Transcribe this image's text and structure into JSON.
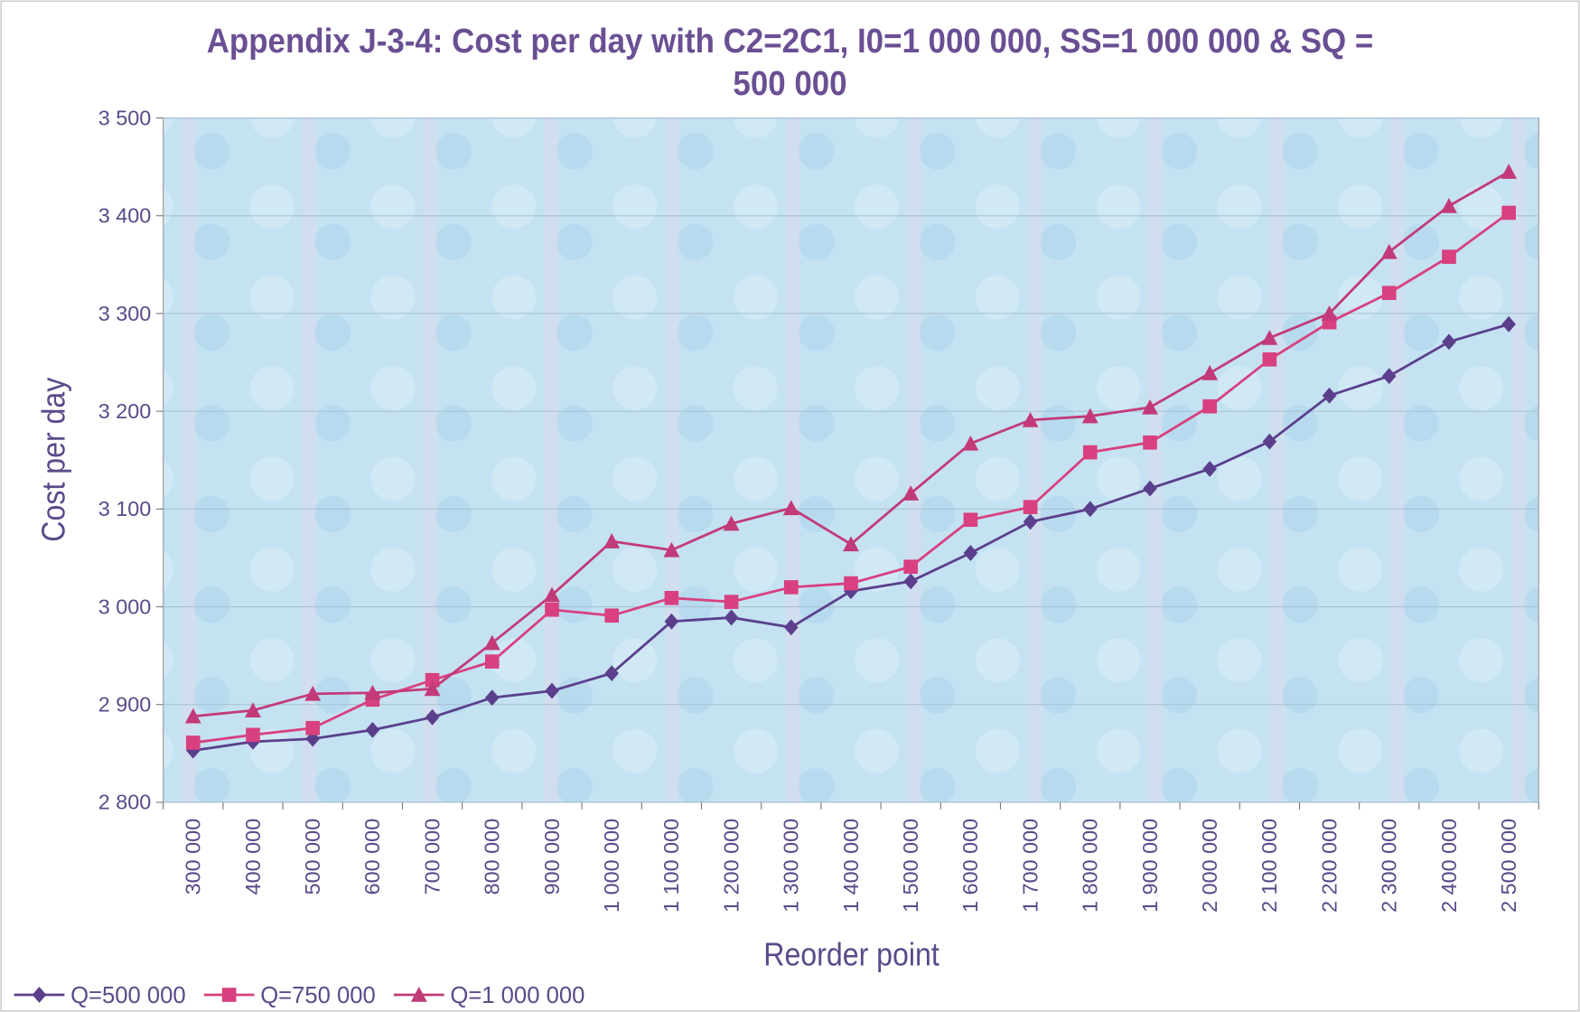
{
  "chart_data": {
    "type": "line",
    "title": "Appendix J-3-4: Cost per day with C2=2C1, I0=1 000 000, SS=1 000 000 & SQ = 500 000",
    "x_label": "Reorder point",
    "y_label": "Cost per day",
    "categories": [
      "300 000",
      "400 000",
      "500 000",
      "600 000",
      "700 000",
      "800 000",
      "900 000",
      "1 000 000",
      "1 100 000",
      "1 200 000",
      "1 300 000",
      "1 400 000",
      "1 500 000",
      "1 600 000",
      "1 700 000",
      "1 800 000",
      "1 900 000",
      "2 000 000",
      "2 100 000",
      "2 200 000",
      "2 300 000",
      "2 400 000",
      "2 500 000"
    ],
    "series": [
      {
        "name": "Q=500 000",
        "color": "#5b3f8c",
        "marker": "diamond",
        "values": [
          2853,
          2862,
          2865,
          2874,
          2887,
          2907,
          2914,
          2932,
          2985,
          2989,
          2979,
          3016,
          3026,
          3055,
          3087,
          3100,
          3121,
          3141,
          3169,
          3216,
          3236,
          3271,
          3289
        ]
      },
      {
        "name": "Q=750 000",
        "color": "#d8407f",
        "marker": "square",
        "values": [
          2861,
          2869,
          2876,
          2905,
          2925,
          2944,
          2997,
          2991,
          3009,
          3005,
          3020,
          3024,
          3041,
          3089,
          3102,
          3158,
          3168,
          3205,
          3253,
          3291,
          3321,
          3358,
          3403
        ]
      },
      {
        "name": "Q=1 000 000",
        "color": "#c23a78",
        "marker": "triangle",
        "values": [
          2888,
          2894,
          2911,
          2912,
          2916,
          2963,
          3012,
          3067,
          3058,
          3085,
          3101,
          3064,
          3116,
          3167,
          3191,
          3195,
          3204,
          3239,
          3275,
          3300,
          3363,
          3410,
          3445
        ]
      }
    ],
    "ylim": [
      2800,
      3500
    ],
    "yticks": [
      {
        "value": 2800,
        "label": "2 800"
      },
      {
        "value": 2900,
        "label": "2 900"
      },
      {
        "value": 3000,
        "label": "3 000"
      },
      {
        "value": 3100,
        "label": "3 100"
      },
      {
        "value": 3200,
        "label": "3 200"
      },
      {
        "value": 3300,
        "label": "3 300"
      },
      {
        "value": 3400,
        "label": "3 400"
      },
      {
        "value": 3500,
        "label": "3 500"
      }
    ],
    "grid": true,
    "legend": "bottom-left"
  }
}
